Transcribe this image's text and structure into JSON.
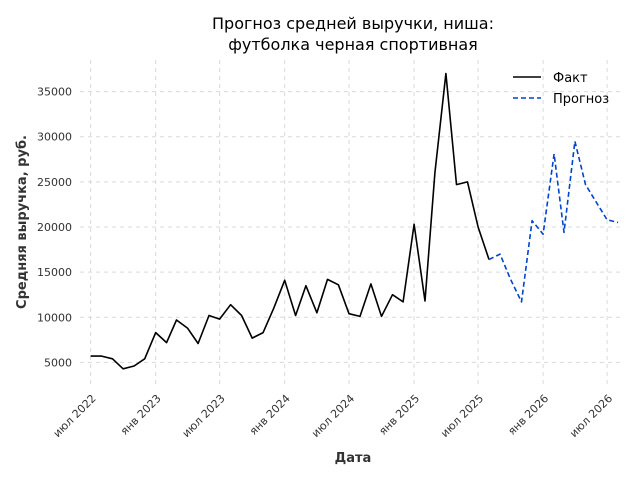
{
  "chart_data": {
    "type": "line",
    "title_lines": [
      "Прогноз средней выручки, ниша:",
      "футболка черная спортивная"
    ],
    "xlabel": "Дата",
    "ylabel": "Средняя выручка, руб.",
    "x_ticks": [
      {
        "label": "июл 2022",
        "date": "2022-07-01"
      },
      {
        "label": "янв 2023",
        "date": "2023-01-01"
      },
      {
        "label": "июл 2023",
        "date": "2023-07-01"
      },
      {
        "label": "янв 2024",
        "date": "2024-01-01"
      },
      {
        "label": "июл 2024",
        "date": "2024-07-01"
      },
      {
        "label": "янв 2025",
        "date": "2025-01-01"
      },
      {
        "label": "июл 2025",
        "date": "2025-07-01"
      },
      {
        "label": "янв 2026",
        "date": "2026-01-01"
      },
      {
        "label": "июл 2026",
        "date": "2026-07-01"
      }
    ],
    "y_ticks": [
      5000,
      10000,
      15000,
      20000,
      25000,
      30000,
      35000
    ],
    "xlim": [
      "2022-06-01",
      "2026-08-15"
    ],
    "ylim": [
      2500,
      38500
    ],
    "grid": true,
    "legend_position": "top-right",
    "series": [
      {
        "name": "Факт",
        "color": "#000000",
        "style": "solid",
        "points": [
          [
            "2022-07-01",
            5700
          ],
          [
            "2022-08-01",
            5700
          ],
          [
            "2022-09-01",
            5400
          ],
          [
            "2022-10-01",
            4300
          ],
          [
            "2022-11-01",
            4600
          ],
          [
            "2022-12-01",
            5400
          ],
          [
            "2023-01-01",
            8300
          ],
          [
            "2023-02-01",
            7200
          ],
          [
            "2023-03-01",
            9700
          ],
          [
            "2023-04-01",
            8800
          ],
          [
            "2023-05-01",
            7100
          ],
          [
            "2023-06-01",
            10200
          ],
          [
            "2023-07-01",
            9800
          ],
          [
            "2023-08-01",
            11400
          ],
          [
            "2023-09-01",
            10200
          ],
          [
            "2023-10-01",
            7700
          ],
          [
            "2023-11-01",
            8300
          ],
          [
            "2023-12-01",
            11000
          ],
          [
            "2024-01-01",
            14100
          ],
          [
            "2024-02-01",
            10200
          ],
          [
            "2024-03-01",
            13500
          ],
          [
            "2024-04-01",
            10500
          ],
          [
            "2024-05-01",
            14200
          ],
          [
            "2024-06-01",
            13600
          ],
          [
            "2024-07-01",
            10400
          ],
          [
            "2024-08-01",
            10100
          ],
          [
            "2024-09-01",
            13700
          ],
          [
            "2024-10-01",
            10100
          ],
          [
            "2024-11-01",
            12500
          ],
          [
            "2024-12-01",
            11700
          ],
          [
            "2025-01-01",
            20300
          ],
          [
            "2025-02-01",
            11800
          ],
          [
            "2025-03-01",
            26000
          ],
          [
            "2025-04-01",
            37000
          ],
          [
            "2025-05-01",
            24700
          ],
          [
            "2025-06-01",
            25000
          ],
          [
            "2025-07-01",
            20000
          ],
          [
            "2025-08-01",
            16400
          ]
        ]
      },
      {
        "name": "Прогноз",
        "color": "#0044cc",
        "style": "dashed",
        "points": [
          [
            "2025-08-01",
            16400
          ],
          [
            "2025-09-01",
            17000
          ],
          [
            "2025-10-01",
            14200
          ],
          [
            "2025-11-01",
            11700
          ],
          [
            "2025-12-01",
            20700
          ],
          [
            "2026-01-01",
            19200
          ],
          [
            "2026-02-01",
            28100
          ],
          [
            "2026-03-01",
            19400
          ],
          [
            "2026-04-01",
            29500
          ],
          [
            "2026-05-01",
            24700
          ],
          [
            "2026-06-01",
            22700
          ],
          [
            "2026-07-01",
            20800
          ],
          [
            "2026-08-01",
            20500
          ]
        ]
      }
    ]
  }
}
